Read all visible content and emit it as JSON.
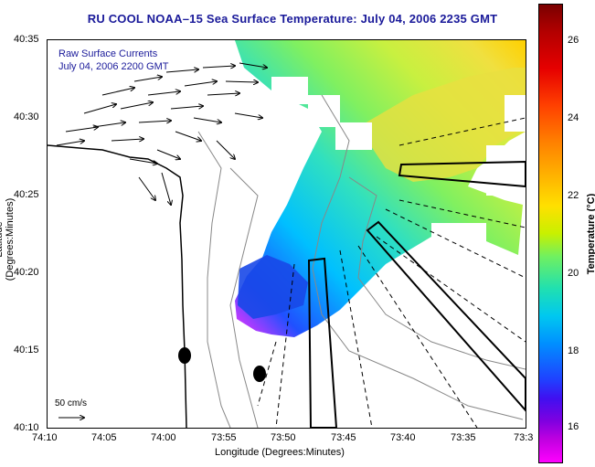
{
  "title": "RU COOL  NOAA–15  Sea Surface Temperature:  July 04, 2006 2235 GMT",
  "legend": {
    "line1": "Raw Surface Currents",
    "line2": "July 04, 2006 2200 GMT"
  },
  "axes": {
    "xlabel": "Longitude (Degrees:Minutes)",
    "ylabel": "Latitude (Degrees:Minutes)",
    "x_ticks": [
      "74:10",
      "74:05",
      "74:00",
      "73:55",
      "73:50",
      "73:45",
      "73:40",
      "73:35",
      "73:3"
    ],
    "y_ticks": [
      "40:35",
      "40:30",
      "40:25",
      "40:20",
      "40:15",
      "40:10"
    ]
  },
  "scale_bar": {
    "label": "50 cm/s"
  },
  "colorbar": {
    "label": "Temperature (°C)",
    "ticks": [
      "26",
      "24",
      "22",
      "20",
      "18",
      "16"
    ]
  },
  "colors": {
    "title": "#1a1a9a",
    "legend": "#1a1a9a"
  }
}
